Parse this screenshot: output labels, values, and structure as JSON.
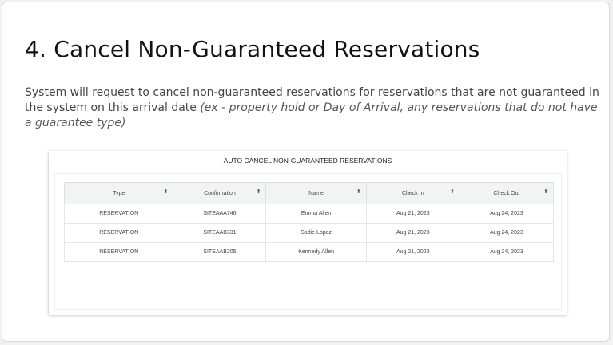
{
  "title": "4. Cancel Non-Guaranteed Reservations",
  "description": {
    "text": "System will request to cancel non-guaranteed reservations for reservations that are not guaranteed in the system on this arrival date ",
    "italic": "(ex - property hold or Day of Arrival, any reservations that do not have a guarantee type)"
  },
  "panel": {
    "title": "AUTO CANCEL NON-GUARANTEED RESERVATIONS",
    "columns": [
      "Type",
      "Confirmation",
      "Name",
      "Check In",
      "Check Out"
    ],
    "rows": [
      [
        "RESERVATION",
        "SITEAAA746",
        "Emma Allen",
        "Aug 21, 2023",
        "Aug 24, 2023"
      ],
      [
        "RESERVATION",
        "SITEAAB331",
        "Sadie Lopez",
        "Aug 21, 2023",
        "Aug 24, 2023"
      ],
      [
        "RESERVATION",
        "SITEAAB205",
        "Kennedy Allen",
        "Aug 21, 2023",
        "Aug 24, 2023"
      ]
    ]
  }
}
